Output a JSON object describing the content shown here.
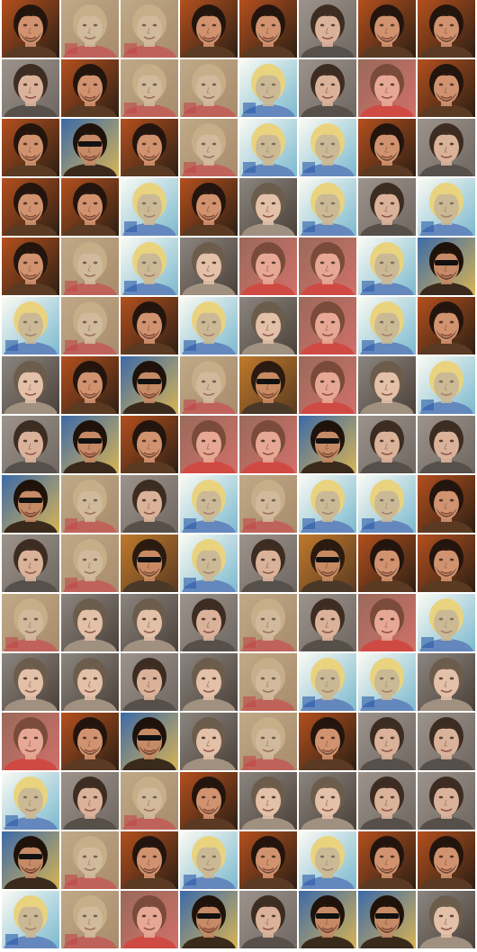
{
  "grid": {
    "rows": 16,
    "cols": 8,
    "palette": {
      "man-red": {
        "bg1": "#b4501e",
        "bg2": "#2c1f14",
        "hair": "#23150d",
        "skin": "#d1926f",
        "shirt": "#5a3a22"
      },
      "man-sunglasses": {
        "bg1": "#3b6aa8",
        "bg2": "#d9b454",
        "hair": "#1e120a",
        "skin": "#c58a66",
        "shirt": "#3a2a1c"
      },
      "boy-gray": {
        "bg1": "#9c948c",
        "bg2": "#6e6660",
        "hair": "#3d2c22",
        "skin": "#dab29a",
        "shirt": "#57504a"
      },
      "girl-gray": {
        "bg1": "#8c8680",
        "bg2": "#4a4038",
        "hair": "#6c5c4c",
        "skin": "#e3c0a8",
        "shirt": "#a09080"
      },
      "pink-girl": {
        "bg1": "#9a6a5a",
        "bg2": "#d0706a",
        "hair": "#7a4a3a",
        "skin": "#e6a894",
        "shirt": "#d04a44"
      },
      "ghost-blue": {
        "bg1": "#fbfbf4",
        "bg2": "#4aa0c0",
        "hair": "#e2c452",
        "skin": "#b8a070",
        "shirt": "#2a5aa8"
      },
      "ghost-pale": {
        "bg1": "#c0aa88",
        "bg2": "#a08060",
        "hair": "#cab08a",
        "skin": "#d8c0a4",
        "shirt": "#c04848"
      },
      "warm-man": {
        "bg1": "#c07a2c",
        "bg2": "#5a3a20",
        "hair": "#2a1a10",
        "skin": "#c88a62",
        "shirt": "#4a3828"
      }
    },
    "tiles": [
      [
        "man-red",
        "ghost-pale",
        "ghost-pale",
        "man-red",
        "man-red",
        "boy-gray",
        "man-red",
        "man-red"
      ],
      [
        "boy-gray",
        "man-red",
        "ghost-pale",
        "ghost-pale",
        "ghost-blue",
        "boy-gray",
        "pink-girl",
        "man-red"
      ],
      [
        "man-red",
        "man-sunglasses",
        "man-red",
        "ghost-pale",
        "ghost-blue",
        "ghost-blue",
        "man-red",
        "boy-gray"
      ],
      [
        "man-red",
        "man-red",
        "ghost-blue",
        "man-red",
        "girl-gray",
        "ghost-blue",
        "boy-gray",
        "ghost-blue"
      ],
      [
        "man-red",
        "ghost-pale",
        "ghost-blue",
        "girl-gray",
        "pink-girl",
        "pink-girl",
        "ghost-blue",
        "man-sunglasses"
      ],
      [
        "ghost-blue",
        "ghost-pale",
        "man-red",
        "ghost-blue",
        "girl-gray",
        "pink-girl",
        "ghost-blue",
        "man-red"
      ],
      [
        "girl-gray",
        "man-red",
        "man-sunglasses",
        "ghost-pale",
        "warm-man",
        "pink-girl",
        "girl-gray",
        "ghost-blue"
      ],
      [
        "boy-gray",
        "man-sunglasses",
        "man-red",
        "pink-girl",
        "pink-girl",
        "man-sunglasses",
        "boy-gray",
        "boy-gray"
      ],
      [
        "man-sunglasses",
        "ghost-pale",
        "boy-gray",
        "ghost-blue",
        "ghost-pale",
        "ghost-blue",
        "ghost-blue",
        "man-red"
      ],
      [
        "boy-gray",
        "ghost-pale",
        "warm-man",
        "ghost-blue",
        "boy-gray",
        "warm-man",
        "man-red",
        "man-red"
      ],
      [
        "ghost-pale",
        "girl-gray",
        "girl-gray",
        "boy-gray",
        "ghost-pale",
        "boy-gray",
        "pink-girl",
        "ghost-blue"
      ],
      [
        "girl-gray",
        "girl-gray",
        "boy-gray",
        "girl-gray",
        "ghost-pale",
        "ghost-blue",
        "ghost-blue",
        "girl-gray"
      ],
      [
        "pink-girl",
        "man-red",
        "man-sunglasses",
        "girl-gray",
        "ghost-pale",
        "man-red",
        "boy-gray",
        "boy-gray"
      ],
      [
        "ghost-blue",
        "boy-gray",
        "ghost-pale",
        "man-red",
        "girl-gray",
        "girl-gray",
        "boy-gray",
        "boy-gray"
      ],
      [
        "man-sunglasses",
        "ghost-pale",
        "man-red",
        "ghost-blue",
        "man-red",
        "ghost-blue",
        "man-red",
        "man-red"
      ],
      [
        "ghost-blue",
        "ghost-pale",
        "pink-girl",
        "man-sunglasses",
        "boy-gray",
        "man-sunglasses",
        "man-sunglasses",
        "girl-gray"
      ]
    ]
  }
}
